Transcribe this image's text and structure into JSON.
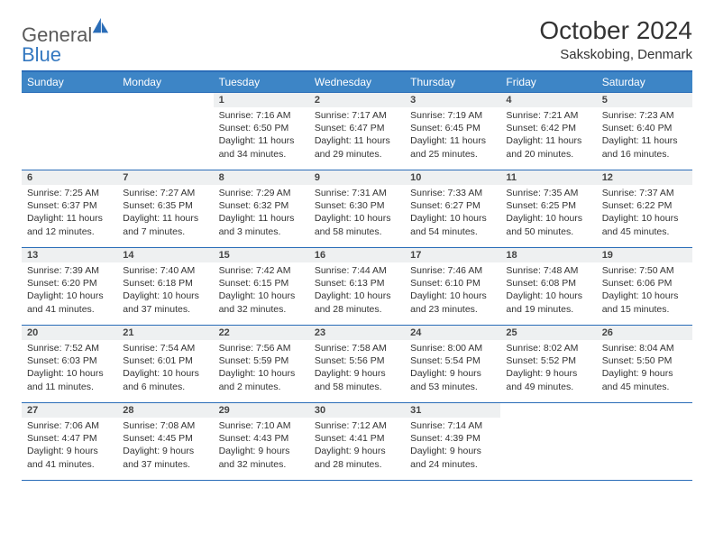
{
  "logo": {
    "text_general": "General",
    "text_blue": "Blue",
    "mark_color": "#2a6db8"
  },
  "title": "October 2024",
  "subtitle": "Sakskobing, Denmark",
  "header_bg": "#3d85c6",
  "border_color": "#2a6db8",
  "daynum_bg": "#eef0f1",
  "days_of_week": [
    "Sunday",
    "Monday",
    "Tuesday",
    "Wednesday",
    "Thursday",
    "Friday",
    "Saturday"
  ],
  "weeks": [
    [
      null,
      null,
      {
        "n": "1",
        "sunrise": "Sunrise: 7:16 AM",
        "sunset": "Sunset: 6:50 PM",
        "daylight": "Daylight: 11 hours and 34 minutes."
      },
      {
        "n": "2",
        "sunrise": "Sunrise: 7:17 AM",
        "sunset": "Sunset: 6:47 PM",
        "daylight": "Daylight: 11 hours and 29 minutes."
      },
      {
        "n": "3",
        "sunrise": "Sunrise: 7:19 AM",
        "sunset": "Sunset: 6:45 PM",
        "daylight": "Daylight: 11 hours and 25 minutes."
      },
      {
        "n": "4",
        "sunrise": "Sunrise: 7:21 AM",
        "sunset": "Sunset: 6:42 PM",
        "daylight": "Daylight: 11 hours and 20 minutes."
      },
      {
        "n": "5",
        "sunrise": "Sunrise: 7:23 AM",
        "sunset": "Sunset: 6:40 PM",
        "daylight": "Daylight: 11 hours and 16 minutes."
      }
    ],
    [
      {
        "n": "6",
        "sunrise": "Sunrise: 7:25 AM",
        "sunset": "Sunset: 6:37 PM",
        "daylight": "Daylight: 11 hours and 12 minutes."
      },
      {
        "n": "7",
        "sunrise": "Sunrise: 7:27 AM",
        "sunset": "Sunset: 6:35 PM",
        "daylight": "Daylight: 11 hours and 7 minutes."
      },
      {
        "n": "8",
        "sunrise": "Sunrise: 7:29 AM",
        "sunset": "Sunset: 6:32 PM",
        "daylight": "Daylight: 11 hours and 3 minutes."
      },
      {
        "n": "9",
        "sunrise": "Sunrise: 7:31 AM",
        "sunset": "Sunset: 6:30 PM",
        "daylight": "Daylight: 10 hours and 58 minutes."
      },
      {
        "n": "10",
        "sunrise": "Sunrise: 7:33 AM",
        "sunset": "Sunset: 6:27 PM",
        "daylight": "Daylight: 10 hours and 54 minutes."
      },
      {
        "n": "11",
        "sunrise": "Sunrise: 7:35 AM",
        "sunset": "Sunset: 6:25 PM",
        "daylight": "Daylight: 10 hours and 50 minutes."
      },
      {
        "n": "12",
        "sunrise": "Sunrise: 7:37 AM",
        "sunset": "Sunset: 6:22 PM",
        "daylight": "Daylight: 10 hours and 45 minutes."
      }
    ],
    [
      {
        "n": "13",
        "sunrise": "Sunrise: 7:39 AM",
        "sunset": "Sunset: 6:20 PM",
        "daylight": "Daylight: 10 hours and 41 minutes."
      },
      {
        "n": "14",
        "sunrise": "Sunrise: 7:40 AM",
        "sunset": "Sunset: 6:18 PM",
        "daylight": "Daylight: 10 hours and 37 minutes."
      },
      {
        "n": "15",
        "sunrise": "Sunrise: 7:42 AM",
        "sunset": "Sunset: 6:15 PM",
        "daylight": "Daylight: 10 hours and 32 minutes."
      },
      {
        "n": "16",
        "sunrise": "Sunrise: 7:44 AM",
        "sunset": "Sunset: 6:13 PM",
        "daylight": "Daylight: 10 hours and 28 minutes."
      },
      {
        "n": "17",
        "sunrise": "Sunrise: 7:46 AM",
        "sunset": "Sunset: 6:10 PM",
        "daylight": "Daylight: 10 hours and 23 minutes."
      },
      {
        "n": "18",
        "sunrise": "Sunrise: 7:48 AM",
        "sunset": "Sunset: 6:08 PM",
        "daylight": "Daylight: 10 hours and 19 minutes."
      },
      {
        "n": "19",
        "sunrise": "Sunrise: 7:50 AM",
        "sunset": "Sunset: 6:06 PM",
        "daylight": "Daylight: 10 hours and 15 minutes."
      }
    ],
    [
      {
        "n": "20",
        "sunrise": "Sunrise: 7:52 AM",
        "sunset": "Sunset: 6:03 PM",
        "daylight": "Daylight: 10 hours and 11 minutes."
      },
      {
        "n": "21",
        "sunrise": "Sunrise: 7:54 AM",
        "sunset": "Sunset: 6:01 PM",
        "daylight": "Daylight: 10 hours and 6 minutes."
      },
      {
        "n": "22",
        "sunrise": "Sunrise: 7:56 AM",
        "sunset": "Sunset: 5:59 PM",
        "daylight": "Daylight: 10 hours and 2 minutes."
      },
      {
        "n": "23",
        "sunrise": "Sunrise: 7:58 AM",
        "sunset": "Sunset: 5:56 PM",
        "daylight": "Daylight: 9 hours and 58 minutes."
      },
      {
        "n": "24",
        "sunrise": "Sunrise: 8:00 AM",
        "sunset": "Sunset: 5:54 PM",
        "daylight": "Daylight: 9 hours and 53 minutes."
      },
      {
        "n": "25",
        "sunrise": "Sunrise: 8:02 AM",
        "sunset": "Sunset: 5:52 PM",
        "daylight": "Daylight: 9 hours and 49 minutes."
      },
      {
        "n": "26",
        "sunrise": "Sunrise: 8:04 AM",
        "sunset": "Sunset: 5:50 PM",
        "daylight": "Daylight: 9 hours and 45 minutes."
      }
    ],
    [
      {
        "n": "27",
        "sunrise": "Sunrise: 7:06 AM",
        "sunset": "Sunset: 4:47 PM",
        "daylight": "Daylight: 9 hours and 41 minutes."
      },
      {
        "n": "28",
        "sunrise": "Sunrise: 7:08 AM",
        "sunset": "Sunset: 4:45 PM",
        "daylight": "Daylight: 9 hours and 37 minutes."
      },
      {
        "n": "29",
        "sunrise": "Sunrise: 7:10 AM",
        "sunset": "Sunset: 4:43 PM",
        "daylight": "Daylight: 9 hours and 32 minutes."
      },
      {
        "n": "30",
        "sunrise": "Sunrise: 7:12 AM",
        "sunset": "Sunset: 4:41 PM",
        "daylight": "Daylight: 9 hours and 28 minutes."
      },
      {
        "n": "31",
        "sunrise": "Sunrise: 7:14 AM",
        "sunset": "Sunset: 4:39 PM",
        "daylight": "Daylight: 9 hours and 24 minutes."
      },
      null,
      null
    ]
  ]
}
